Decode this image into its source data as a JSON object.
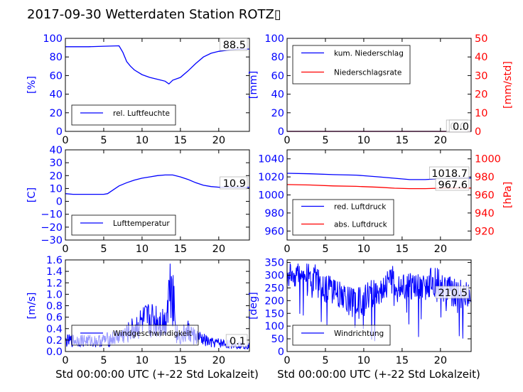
{
  "figure": {
    "title": "2017-09-30 Wetterdaten Station ROTZ▯",
    "xlabel": "Std 00:00:00 UTC (+-22 Std Lokalzeit)"
  },
  "colors": {
    "blue": "#0000ff",
    "red": "#ff0000",
    "black": "#000000"
  },
  "chart_data": [
    {
      "type": "line",
      "ylabel": "[%]",
      "xlim": [
        0,
        24
      ],
      "ylim": [
        0,
        100
      ],
      "xticks": [
        0,
        5,
        10,
        15,
        20
      ],
      "yticks": [
        0,
        20,
        40,
        60,
        80,
        100
      ],
      "legend": "bottom-left",
      "annotations": [
        "88.5"
      ],
      "series": [
        {
          "name": "rel. Luftfeuchte",
          "color": "#0000ff",
          "x": [
            0,
            1,
            3,
            5,
            7,
            7.5,
            8,
            8.5,
            9,
            10,
            11,
            12,
            13,
            13.5,
            14,
            15,
            16,
            17,
            18,
            19,
            20,
            21,
            22,
            23,
            24
          ],
          "y": [
            91,
            91,
            91,
            91.5,
            92,
            85,
            75,
            70,
            66,
            61,
            58,
            56,
            54,
            51,
            55,
            58,
            65,
            73,
            80,
            84,
            86,
            87,
            88,
            88.5,
            88.5
          ]
        }
      ]
    },
    {
      "type": "line",
      "ylabel": "[mm]",
      "ylabel_right": "[mm/std]",
      "xlim": [
        0,
        24
      ],
      "ylim": [
        0,
        100
      ],
      "ylim_right": [
        0,
        50
      ],
      "xticks": [
        0,
        5,
        10,
        15,
        20
      ],
      "yticks": [
        0,
        20,
        40,
        60,
        80,
        100
      ],
      "yticks_right": [
        0,
        10,
        20,
        30,
        40,
        50
      ],
      "legend": "top-left",
      "annotations": [
        "0.0",
        "0.0"
      ],
      "series": [
        {
          "name": "kum. Niederschlag",
          "color": "#0000ff",
          "axis": "left",
          "x": [
            0,
            24
          ],
          "y": [
            0,
            0
          ]
        },
        {
          "name": "Niederschlagsrate",
          "color": "#ff0000",
          "axis": "right",
          "x": [
            0,
            24
          ],
          "y": [
            0,
            0
          ]
        }
      ]
    },
    {
      "type": "line",
      "ylabel": "[C]",
      "xlim": [
        0,
        24
      ],
      "ylim": [
        -30,
        40
      ],
      "xticks": [
        0,
        5,
        10,
        15,
        20
      ],
      "yticks": [
        -30,
        -20,
        -10,
        0,
        10,
        20,
        30,
        40
      ],
      "legend": "bottom-left",
      "annotations": [
        "10.9"
      ],
      "series": [
        {
          "name": "Lufttemperatur",
          "color": "#0000ff",
          "x": [
            0,
            1,
            2,
            3,
            4,
            5,
            5.5,
            6,
            7,
            8,
            9,
            10,
            11,
            12,
            13,
            14,
            15,
            16,
            17,
            18,
            19,
            20,
            21,
            22,
            23,
            24
          ],
          "y": [
            6,
            5.5,
            5.5,
            5.5,
            5.5,
            5.5,
            6,
            8,
            12,
            14.5,
            16.5,
            18,
            19,
            20,
            20.5,
            20.5,
            19,
            17,
            14.5,
            12.5,
            11.5,
            11,
            11,
            11,
            10.9,
            10.9
          ]
        }
      ]
    },
    {
      "type": "line",
      "ylabel_right": "[hPa]",
      "xlim": [
        0,
        24
      ],
      "ylim": [
        950,
        1050
      ],
      "ylim_right": [
        910,
        1010
      ],
      "xticks": [
        0,
        5,
        10,
        15,
        20
      ],
      "yticks": [
        960,
        980,
        1000,
        1020,
        1040
      ],
      "yticks_right": [
        920,
        940,
        960,
        980,
        1000
      ],
      "legend": "bottom-left",
      "annotations": [
        "1018.7",
        "967.6"
      ],
      "series": [
        {
          "name": "red. Luftdruck",
          "color": "#0000ff",
          "axis": "left",
          "x": [
            0,
            3,
            6,
            9,
            12,
            14,
            16,
            18,
            20,
            22,
            24
          ],
          "y": [
            1024,
            1023.5,
            1022.5,
            1022,
            1020,
            1018.5,
            1017,
            1017,
            1018,
            1018.5,
            1018.7
          ]
        },
        {
          "name": "abs. Luftdruck",
          "color": "#ff0000",
          "axis": "right",
          "x": [
            0,
            3,
            6,
            9,
            12,
            14,
            16,
            18,
            20,
            22,
            24
          ],
          "y": [
            971.5,
            971,
            970,
            969.5,
            968.5,
            967.5,
            967,
            967,
            967.5,
            967.6,
            967.6
          ]
        }
      ]
    },
    {
      "type": "line",
      "ylabel": "[m/s]",
      "xlim": [
        0,
        24
      ],
      "ylim": [
        0,
        1.6
      ],
      "xticks": [
        0,
        5,
        10,
        15,
        20
      ],
      "yticks": [
        0.0,
        0.2,
        0.4,
        0.6,
        0.8,
        1.0,
        1.2,
        1.4,
        1.6
      ],
      "ytick_labels": [
        "0.0",
        "0.2",
        "0.4",
        "0.6",
        "0.8",
        "1.0",
        "1.2",
        "1.4",
        "1.6"
      ],
      "legend": "bottom-center",
      "annotations": [
        "0.1"
      ],
      "series": [
        {
          "name": "Windgeschwindigkeit",
          "color": "#0000ff",
          "noisy": true,
          "x": [
            0,
            2,
            4,
            6,
            8,
            9,
            10,
            11,
            12,
            13,
            13.8,
            14.5,
            15,
            16,
            17,
            18,
            19,
            20,
            22,
            24
          ],
          "y": [
            0.18,
            0.2,
            0.18,
            0.22,
            0.3,
            0.4,
            0.5,
            0.55,
            0.55,
            0.5,
            1.4,
            0.3,
            0.25,
            0.35,
            0.25,
            0.2,
            0.15,
            0.15,
            0.12,
            0.1
          ]
        }
      ]
    },
    {
      "type": "line",
      "ylabel": "[deg]",
      "xlim": [
        0,
        24
      ],
      "ylim": [
        0,
        360
      ],
      "xticks": [
        0,
        5,
        10,
        15,
        20
      ],
      "yticks": [
        0,
        50,
        100,
        150,
        200,
        250,
        300,
        350
      ],
      "legend": "bottom-left",
      "annotations": [
        "210.5"
      ],
      "series": [
        {
          "name": "Windrichtung",
          "color": "#0000ff",
          "noisy": true,
          "x": [
            0,
            1,
            2,
            3,
            4,
            5,
            6,
            7,
            8,
            9,
            10,
            11,
            12,
            13,
            14,
            15,
            16,
            17,
            18,
            19,
            20,
            21,
            22,
            23,
            24
          ],
          "y": [
            300,
            310,
            300,
            290,
            280,
            250,
            240,
            230,
            200,
            190,
            200,
            230,
            240,
            270,
            280,
            270,
            260,
            250,
            260,
            280,
            260,
            240,
            230,
            220,
            210
          ]
        }
      ]
    }
  ]
}
